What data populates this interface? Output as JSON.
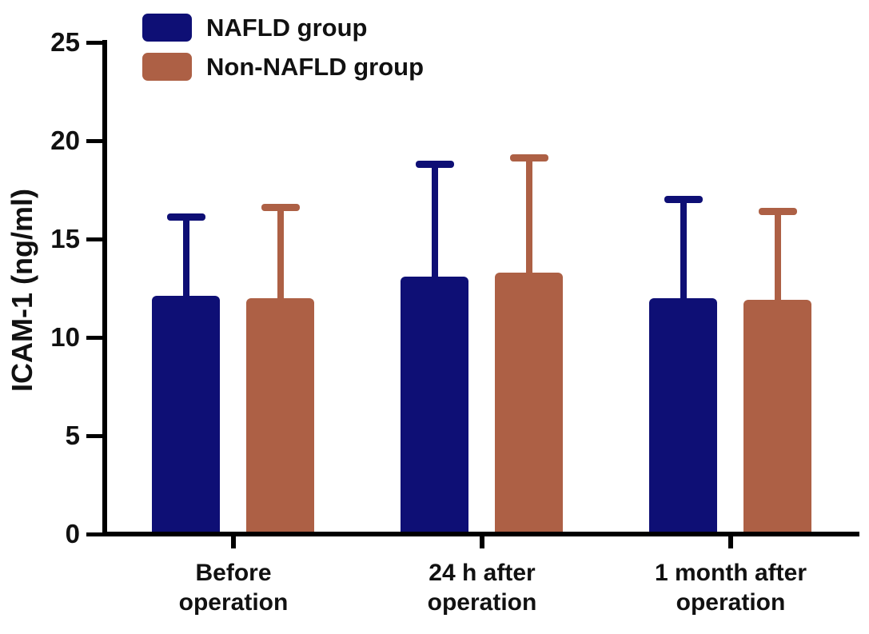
{
  "chart_data": {
    "type": "bar",
    "title": "",
    "ylabel": "ICAM-1 (ng/ml)",
    "xlabel": "",
    "ylim": [
      0,
      25
    ],
    "yticks": [
      0,
      5,
      10,
      15,
      20,
      25
    ],
    "categories": [
      [
        "Before",
        "operation"
      ],
      [
        "24 h after",
        "operation"
      ],
      [
        "1 month after",
        "operation"
      ]
    ],
    "series": [
      {
        "name": "NAFLD group",
        "color": "#0e0f75",
        "values": [
          12.1,
          13.1,
          12.0
        ],
        "error_upper": [
          4.2,
          5.9,
          5.2
        ]
      },
      {
        "name": "Non-NAFLD group",
        "color": "#ad6045",
        "values": [
          12.0,
          13.3,
          11.9
        ],
        "error_upper": [
          4.8,
          6.0,
          4.7
        ]
      }
    ],
    "error_bars": "upper-only",
    "grid": false,
    "legend_position": "top-left",
    "background": "#ffffff",
    "axis_color": "#000000"
  }
}
